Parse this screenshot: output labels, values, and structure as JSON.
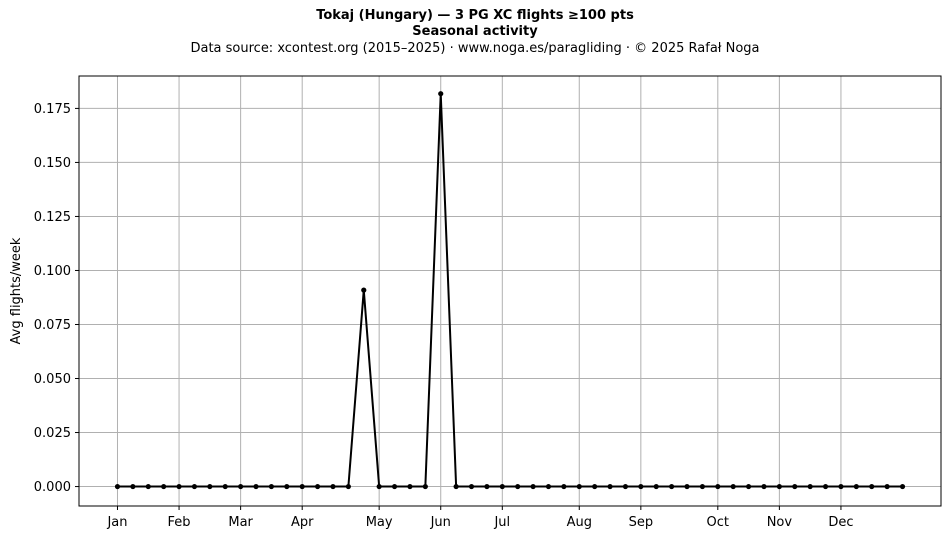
{
  "chart_data": {
    "type": "line",
    "title": "Tokaj (Hungary)  —  3 PG XC flights ≥100 pts",
    "subtitle": "Seasonal activity",
    "source_line": "Data source: xcontest.org (2015–2025)  ·  www.noga.es/paragliding  ·  © 2025 Rafał Noga",
    "xlabel": "",
    "ylabel": "Avg flights/week",
    "ylim": [
      -0.009,
      0.19
    ],
    "xlim": [
      -2.5,
      53.5
    ],
    "grid": true,
    "x_ticks": [
      {
        "week": 0,
        "label": "Jan"
      },
      {
        "week": 4,
        "label": "Feb"
      },
      {
        "week": 8,
        "label": "Mar"
      },
      {
        "week": 12,
        "label": "Apr"
      },
      {
        "week": 17,
        "label": "May"
      },
      {
        "week": 21,
        "label": "Jun"
      },
      {
        "week": 25,
        "label": "Jul"
      },
      {
        "week": 30,
        "label": "Aug"
      },
      {
        "week": 34,
        "label": "Sep"
      },
      {
        "week": 39,
        "label": "Oct"
      },
      {
        "week": 43,
        "label": "Nov"
      },
      {
        "week": 47,
        "label": "Dec"
      }
    ],
    "y_ticks": [
      0.0,
      0.025,
      0.05,
      0.075,
      0.1,
      0.125,
      0.15,
      0.175
    ],
    "y_tick_labels": [
      "0.000",
      "0.025",
      "0.050",
      "0.075",
      "0.100",
      "0.125",
      "0.150",
      "0.175"
    ],
    "series": [
      {
        "color": "#000000",
        "x": [
          0,
          1,
          2,
          3,
          4,
          5,
          6,
          7,
          8,
          9,
          10,
          11,
          12,
          13,
          14,
          15,
          16,
          17,
          18,
          19,
          20,
          21,
          22,
          23,
          24,
          25,
          26,
          27,
          28,
          29,
          30,
          31,
          32,
          33,
          34,
          35,
          36,
          37,
          38,
          39,
          40,
          41,
          42,
          43,
          44,
          45,
          46,
          47,
          48,
          49,
          50,
          51
        ],
        "values": [
          0,
          0,
          0,
          0,
          0,
          0,
          0,
          0,
          0,
          0,
          0,
          0,
          0,
          0,
          0,
          0,
          0.0909,
          0,
          0,
          0,
          0,
          0.1818,
          0,
          0,
          0,
          0,
          0,
          0,
          0,
          0,
          0,
          0,
          0,
          0,
          0,
          0,
          0,
          0,
          0,
          0,
          0,
          0,
          0,
          0,
          0,
          0,
          0,
          0,
          0,
          0,
          0,
          0
        ]
      }
    ]
  }
}
